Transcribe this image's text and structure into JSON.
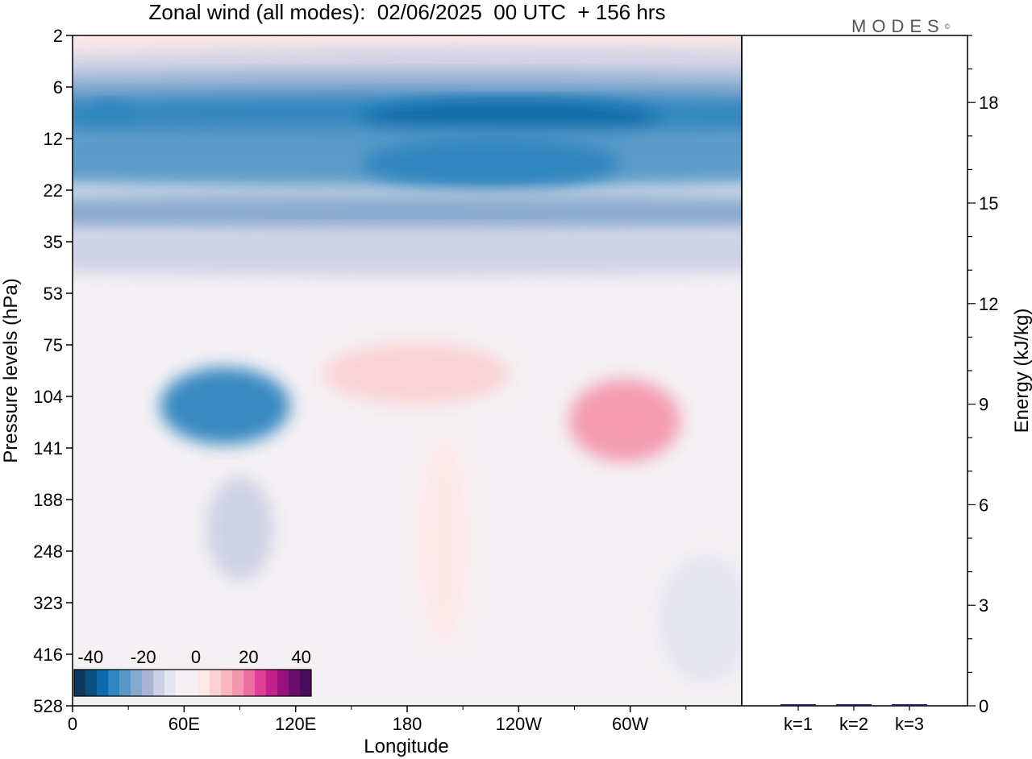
{
  "title": "Zonal wind (all modes):  02/06/2025  00 UTC  + 156 hrs",
  "logo": "MODES",
  "logo_mark": "©",
  "colors": {
    "neg": [
      "#0b3a5c",
      "#0a4f80",
      "#0b6aa8",
      "#2e85bf",
      "#5698c8",
      "#86a9cf",
      "#aab5d6",
      "#ccd0e4",
      "#e5e5ef"
    ],
    "neutral": "#f4f0f3",
    "pos": [
      "#fde7e7",
      "#fbd2d3",
      "#f8b6bd",
      "#f497ae",
      "#ee6fa3",
      "#de4096",
      "#c0218a",
      "#98107c",
      "#6a0d6c",
      "#4a0b5c"
    ]
  },
  "chart_data": [
    {
      "type": "heatmap",
      "title": "Zonal wind (all modes):  02/06/2025  00 UTC  + 156 hrs",
      "xlabel": "Longitude",
      "ylabel": "Pressure levels (hPa)",
      "x_ticks": [
        "0",
        "60E",
        "120E",
        "180",
        "120W",
        "60W"
      ],
      "y_ticks": [
        "2",
        "6",
        "12",
        "22",
        "35",
        "53",
        "75",
        "104",
        "141",
        "188",
        "248",
        "323",
        "416",
        "528"
      ],
      "colorbar": {
        "ticks": [
          "-40",
          "-20",
          "0",
          "20",
          "40"
        ],
        "range": [
          -45,
          45
        ]
      },
      "fields": [
        {
          "lon": 140,
          "level": 2.3,
          "value": 5,
          "w": 190,
          "h": 1.0
        },
        {
          "lon": 320,
          "level": 2.2,
          "value": 7,
          "w": 90,
          "h": 0.9
        },
        {
          "lon": 230,
          "level": 4.5,
          "value": -8,
          "w": 360,
          "h": 1.0
        },
        {
          "lon": 180,
          "level": 6.8,
          "value": -18,
          "w": 380,
          "h": 0.9
        },
        {
          "lon": 180,
          "level": 9.3,
          "value": -30,
          "w": 380,
          "h": 1.0
        },
        {
          "lon": 235,
          "level": 9.4,
          "value": -36,
          "w": 80,
          "h": 0.8
        },
        {
          "lon": 20,
          "level": 9.0,
          "value": -30,
          "w": 10,
          "h": 0.6
        },
        {
          "lon": 180,
          "level": 15,
          "value": -26,
          "w": 380,
          "h": 1.2
        },
        {
          "lon": 225,
          "level": 16,
          "value": -30,
          "w": 70,
          "h": 1.0
        },
        {
          "lon": 180,
          "level": 27,
          "value": -20,
          "w": 380,
          "h": 0.8
        },
        {
          "lon": 180,
          "level": 38,
          "value": -10,
          "w": 380,
          "h": 0.9
        },
        {
          "lon": 82,
          "level": 110,
          "value": -28,
          "w": 35,
          "h": 1.5
        },
        {
          "lon": 90,
          "level": 220,
          "value": -8,
          "w": 18,
          "h": 2.0
        },
        {
          "lon": 185,
          "level": 90,
          "value": 10,
          "w": 50,
          "h": 1.2
        },
        {
          "lon": 200,
          "level": 235,
          "value": 6,
          "w": 14,
          "h": 4.0
        },
        {
          "lon": 297,
          "level": 120,
          "value": 20,
          "w": 30,
          "h": 1.6
        },
        {
          "lon": 340,
          "level": 350,
          "value": -5,
          "w": 25,
          "h": 2.5
        }
      ]
    },
    {
      "type": "bar",
      "categories": [
        "k=1",
        "k=2",
        "k=3"
      ],
      "values": [
        0.02,
        0.02,
        0.02
      ],
      "ylabel": "Energy (kJ/kg)",
      "ylim": [
        0,
        20
      ],
      "y_ticks": [
        "0",
        "3",
        "6",
        "9",
        "12",
        "15",
        "18"
      ]
    }
  ]
}
